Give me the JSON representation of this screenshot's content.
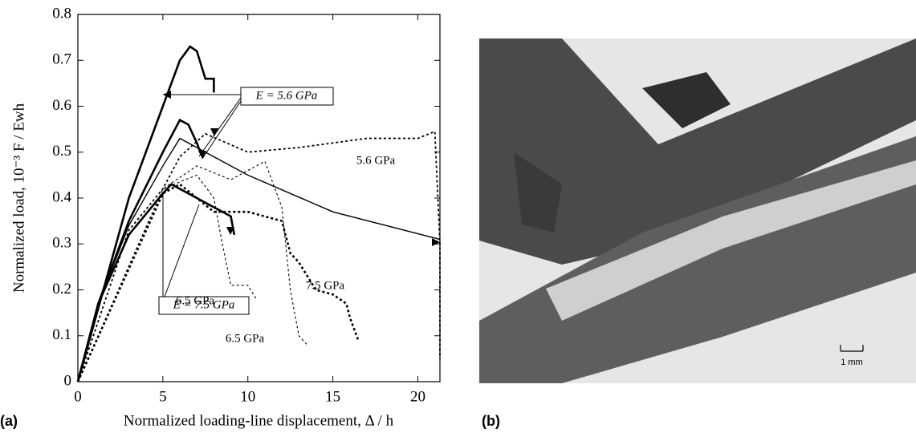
{
  "chart_data": {
    "type": "line",
    "xlabel": "Normalized loading-line displacement,  Δ / h",
    "ylabel": "Normalized  load, 10⁻³ F / Ewh",
    "xlim": [
      0,
      21.3
    ],
    "ylim": [
      0,
      0.8
    ],
    "xticks": [
      0,
      5,
      10,
      15,
      20
    ],
    "yticks": [
      0,
      0.1,
      0.2,
      0.3,
      0.4,
      0.5,
      0.6,
      0.7,
      0.8
    ],
    "series": [
      {
        "color": "#000",
        "style": "solid",
        "linewidth": 2.6,
        "x": [
          0,
          3,
          5,
          6,
          6.6,
          7,
          7.5,
          8,
          8
        ],
        "values": [
          0,
          0.4,
          0.6,
          0.7,
          0.73,
          0.72,
          0.66,
          0.66,
          0.63
        ]
      },
      {
        "color": "#000",
        "style": "solid",
        "linewidth": 2.6,
        "x": [
          0,
          1.2,
          3,
          5,
          6,
          6.5,
          7,
          7.2
        ],
        "values": [
          0,
          0.17,
          0.35,
          0.5,
          0.57,
          0.56,
          0.52,
          0.5
        ]
      },
      {
        "color": "#000",
        "style": "solid",
        "linewidth": 1.4,
        "x": [
          0,
          1.2,
          3,
          5,
          6,
          7,
          10,
          15,
          21.3
        ],
        "values": [
          0,
          0.17,
          0.34,
          0.47,
          0.53,
          0.51,
          0.45,
          0.37,
          0.31
        ]
      },
      {
        "color": "#000",
        "style": "solid",
        "linewidth": 2.6,
        "x": [
          0,
          1.2,
          3,
          5,
          5.5,
          7,
          9,
          9.2
        ],
        "values": [
          0,
          0.17,
          0.32,
          0.41,
          0.43,
          0.4,
          0.36,
          0.32
        ]
      },
      {
        "color": "#000",
        "style": "dotted",
        "linewidth": 1.8,
        "x": [
          0,
          3,
          5,
          6,
          7.5,
          10,
          13,
          17,
          20,
          21,
          21.3,
          21.3
        ],
        "values": [
          0,
          0.33,
          0.42,
          0.49,
          0.54,
          0.5,
          0.51,
          0.53,
          0.53,
          0.545,
          0.3,
          0.05
        ]
      },
      {
        "color": "#000",
        "style": "dotted",
        "linewidth": 2.6,
        "x": [
          0,
          5,
          6,
          8,
          10,
          11,
          12,
          12.5,
          13,
          14,
          15,
          15.8,
          16,
          16.5
        ],
        "values": [
          0,
          0.41,
          0.43,
          0.37,
          0.37,
          0.36,
          0.35,
          0.28,
          0.26,
          0.2,
          0.19,
          0.17,
          0.14,
          0.09
        ]
      },
      {
        "color": "#000",
        "style": "dotted",
        "linewidth": 1.1,
        "x": [
          0,
          5,
          7,
          8,
          8.5,
          9,
          10,
          10.5
        ],
        "values": [
          0,
          0.42,
          0.45,
          0.4,
          0.3,
          0.21,
          0.21,
          0.18
        ]
      },
      {
        "color": "#000",
        "style": "dotted",
        "linewidth": 1.1,
        "x": [
          0,
          5,
          7,
          9,
          11,
          12,
          12.5,
          13,
          13.5
        ],
        "values": [
          0,
          0.42,
          0.47,
          0.44,
          0.48,
          0.38,
          0.2,
          0.1,
          0.08
        ]
      }
    ],
    "annotations": [
      "E = 5.6 GPa",
      "E = 7.5 GPa",
      "5.6 GPa",
      "6.5 GPa",
      "7.5 GPa",
      "6.5 GPa"
    ]
  },
  "panels": {
    "a": "(a)",
    "b": "(b)",
    "scale": "1 mm"
  }
}
